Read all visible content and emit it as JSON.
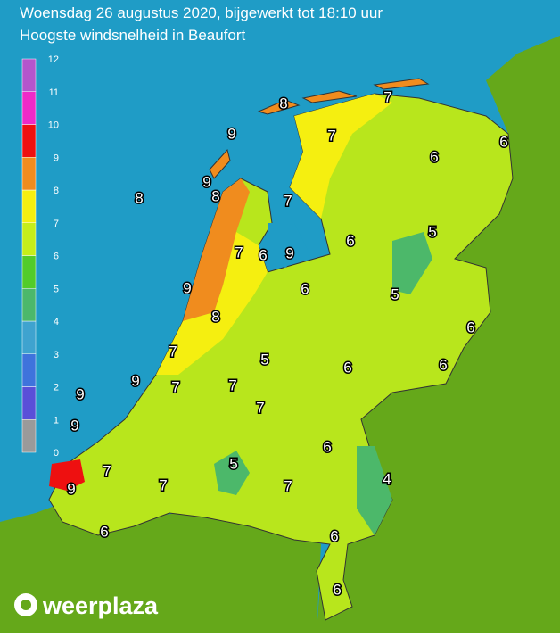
{
  "header": {
    "title": "Woensdag 26 augustus 2020, bijgewerkt tot 18:10 uur",
    "subtitle": "Hoogste windsnelheid in Beaufort"
  },
  "legend": {
    "labels": [
      0,
      1,
      2,
      3,
      4,
      5,
      6,
      7,
      8,
      9,
      10,
      11,
      12
    ],
    "colors": [
      "#9a9a9a",
      "#5a4fd8",
      "#3f73dc",
      "#3fa3cf",
      "#4cb86a",
      "#52cc2a",
      "#c6ee1a",
      "#f5ef10",
      "#f08c1e",
      "#ee1010",
      "#ee2ac8",
      "#b455cc"
    ]
  },
  "map": {
    "labels": [
      8,
      7,
      9,
      7,
      6,
      6,
      9,
      8,
      8,
      7,
      5,
      6,
      7,
      6,
      9,
      9,
      6,
      5,
      8,
      6,
      7,
      5,
      6,
      6,
      9,
      9,
      7,
      7,
      7,
      9,
      6,
      5,
      7,
      4,
      7,
      7,
      9,
      6,
      6,
      6
    ]
  },
  "logo": {
    "text": "weerplaza"
  }
}
